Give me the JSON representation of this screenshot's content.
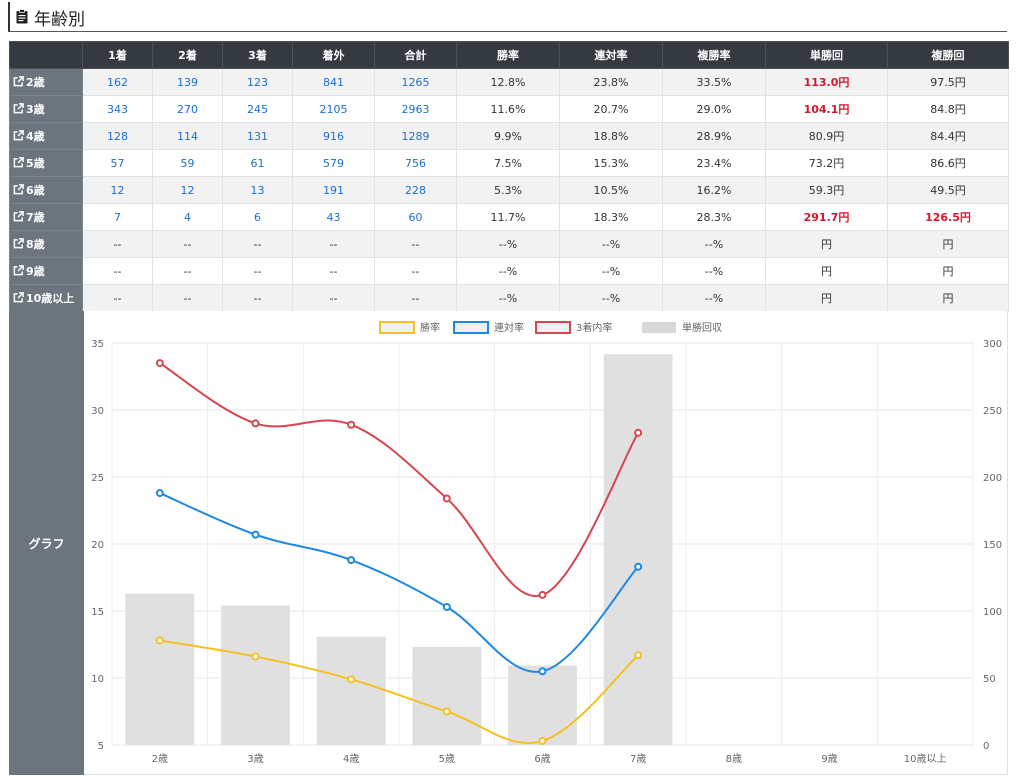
{
  "section": {
    "title": "年齢別",
    "icon": "clipboard-icon"
  },
  "table": {
    "headers": [
      "",
      "1着",
      "2着",
      "3着",
      "着外",
      "合計",
      "勝率",
      "連対率",
      "複勝率",
      "単勝回",
      "複勝回"
    ],
    "rows": [
      {
        "label": "2歳",
        "c1": "162",
        "c2": "139",
        "c3": "123",
        "out": "841",
        "total": "1265",
        "win": "12.8%",
        "ren": "23.8%",
        "fuku": "33.5%",
        "tan": "113.0円",
        "fukuret": "97.5円",
        "tan_hl": true,
        "fuku_hl": false
      },
      {
        "label": "3歳",
        "c1": "343",
        "c2": "270",
        "c3": "245",
        "out": "2105",
        "total": "2963",
        "win": "11.6%",
        "ren": "20.7%",
        "fuku": "29.0%",
        "tan": "104.1円",
        "fukuret": "84.8円",
        "tan_hl": true,
        "fuku_hl": false
      },
      {
        "label": "4歳",
        "c1": "128",
        "c2": "114",
        "c3": "131",
        "out": "916",
        "total": "1289",
        "win": "9.9%",
        "ren": "18.8%",
        "fuku": "28.9%",
        "tan": "80.9円",
        "fukuret": "84.4円",
        "tan_hl": false,
        "fuku_hl": false
      },
      {
        "label": "5歳",
        "c1": "57",
        "c2": "59",
        "c3": "61",
        "out": "579",
        "total": "756",
        "win": "7.5%",
        "ren": "15.3%",
        "fuku": "23.4%",
        "tan": "73.2円",
        "fukuret": "86.6円",
        "tan_hl": false,
        "fuku_hl": false
      },
      {
        "label": "6歳",
        "c1": "12",
        "c2": "12",
        "c3": "13",
        "out": "191",
        "total": "228",
        "win": "5.3%",
        "ren": "10.5%",
        "fuku": "16.2%",
        "tan": "59.3円",
        "fukuret": "49.5円",
        "tan_hl": false,
        "fuku_hl": false
      },
      {
        "label": "7歳",
        "c1": "7",
        "c2": "4",
        "c3": "6",
        "out": "43",
        "total": "60",
        "win": "11.7%",
        "ren": "18.3%",
        "fuku": "28.3%",
        "tan": "291.7円",
        "fukuret": "126.5円",
        "tan_hl": true,
        "fuku_hl": true
      },
      {
        "label": "8歳",
        "c1": "--",
        "c2": "--",
        "c3": "--",
        "out": "--",
        "total": "--",
        "win": "--%",
        "ren": "--%",
        "fuku": "--%",
        "tan": "円",
        "fukuret": "円",
        "tan_hl": false,
        "fuku_hl": false
      },
      {
        "label": "9歳",
        "c1": "--",
        "c2": "--",
        "c3": "--",
        "out": "--",
        "total": "--",
        "win": "--%",
        "ren": "--%",
        "fuku": "--%",
        "tan": "円",
        "fukuret": "円",
        "tan_hl": false,
        "fuku_hl": false
      },
      {
        "label": "10歳以上",
        "c1": "--",
        "c2": "--",
        "c3": "--",
        "out": "--",
        "total": "--",
        "win": "--%",
        "ren": "--%",
        "fuku": "--%",
        "tan": "円",
        "fukuret": "円",
        "tan_hl": false,
        "fuku_hl": false
      }
    ],
    "graph_label": "グラフ"
  },
  "colors": {
    "header_bg": "#343a40",
    "rowhead_bg": "#6c757d",
    "link": "#1a6fd0",
    "highlight": "#d3172c",
    "win": "#f5c024",
    "ren": "#1e88e5",
    "fuku": "#d64550",
    "tan": "#e0e0e0"
  },
  "chart_data": {
    "type": "line",
    "categories": [
      "2歳",
      "3歳",
      "4歳",
      "5歳",
      "6歳",
      "7歳",
      "8歳",
      "9歳",
      "10歳以上"
    ],
    "series": [
      {
        "name": "勝率",
        "axis": "left",
        "type": "line",
        "values": [
          12.8,
          11.6,
          9.9,
          7.5,
          5.3,
          11.7,
          null,
          null,
          null
        ]
      },
      {
        "name": "連対率",
        "axis": "left",
        "type": "line",
        "values": [
          23.8,
          20.7,
          18.8,
          15.3,
          10.5,
          18.3,
          null,
          null,
          null
        ]
      },
      {
        "name": "3着内率",
        "axis": "left",
        "type": "line",
        "values": [
          33.5,
          29.0,
          28.9,
          23.4,
          16.2,
          28.3,
          null,
          null,
          null
        ]
      },
      {
        "name": "単勝回収",
        "axis": "right",
        "type": "bar",
        "values": [
          113.0,
          104.1,
          80.9,
          73.2,
          59.3,
          291.7,
          null,
          null,
          null
        ]
      }
    ],
    "y_left": {
      "min": 5,
      "max": 35,
      "ticks": [
        5,
        10,
        15,
        20,
        25,
        30,
        35
      ]
    },
    "y_right": {
      "min": 0,
      "max": 300,
      "ticks": [
        0,
        50,
        100,
        150,
        200,
        250,
        300
      ]
    },
    "legend_position": "top-center",
    "grid": true
  }
}
